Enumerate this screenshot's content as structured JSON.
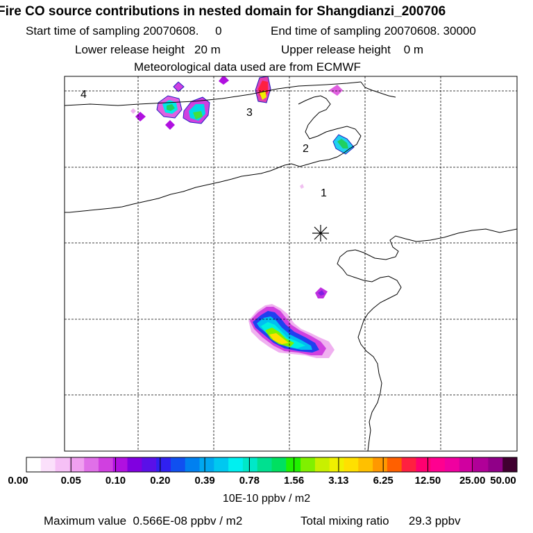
{
  "header": {
    "title": "Fire CO source contributions in nested domain for Shangdianzi_200706",
    "start_label": "Start time of sampling 20070608.     0",
    "end_label": "End time of sampling 20070608. 30000",
    "lower_label": "Lower release height   20 m",
    "upper_label": "Upper release height    0 m",
    "met_label": "Meteorological data used are from ECMWF"
  },
  "map": {
    "point_labels": [
      "1",
      "2",
      "3",
      "4"
    ],
    "station_marker": "station-star"
  },
  "colorbar": {
    "colors": [
      "#ffffff",
      "#fbe0fb",
      "#f6c0f6",
      "#f0a0f0",
      "#e070e8",
      "#d040e0",
      "#b010e0",
      "#8000e0",
      "#5a10e8",
      "#3020f0",
      "#1050f0",
      "#0080f0",
      "#00a8f0",
      "#00c8f0",
      "#00f0f0",
      "#00e8c8",
      "#00e090",
      "#00e060",
      "#20f000",
      "#80f000",
      "#c8f000",
      "#f0f000",
      "#ffe000",
      "#ffc000",
      "#ff9800",
      "#ff6000",
      "#ff2040",
      "#ff0070",
      "#ff0090",
      "#f000a0",
      "#d000a0",
      "#b00098",
      "#900088",
      "#400030"
    ],
    "labels": [
      "0.00",
      "0.05",
      "0.10",
      "0.20",
      "0.39",
      "0.78",
      "1.56",
      "3.13",
      "6.25",
      "12.50",
      "25.00",
      "50.00"
    ],
    "units": "10E-10 ppbv / m2"
  },
  "footer": {
    "max_value": "Maximum value  0.566E-08 ppbv / m2",
    "total": "Total mixing ratio      29.3 ppbv"
  }
}
